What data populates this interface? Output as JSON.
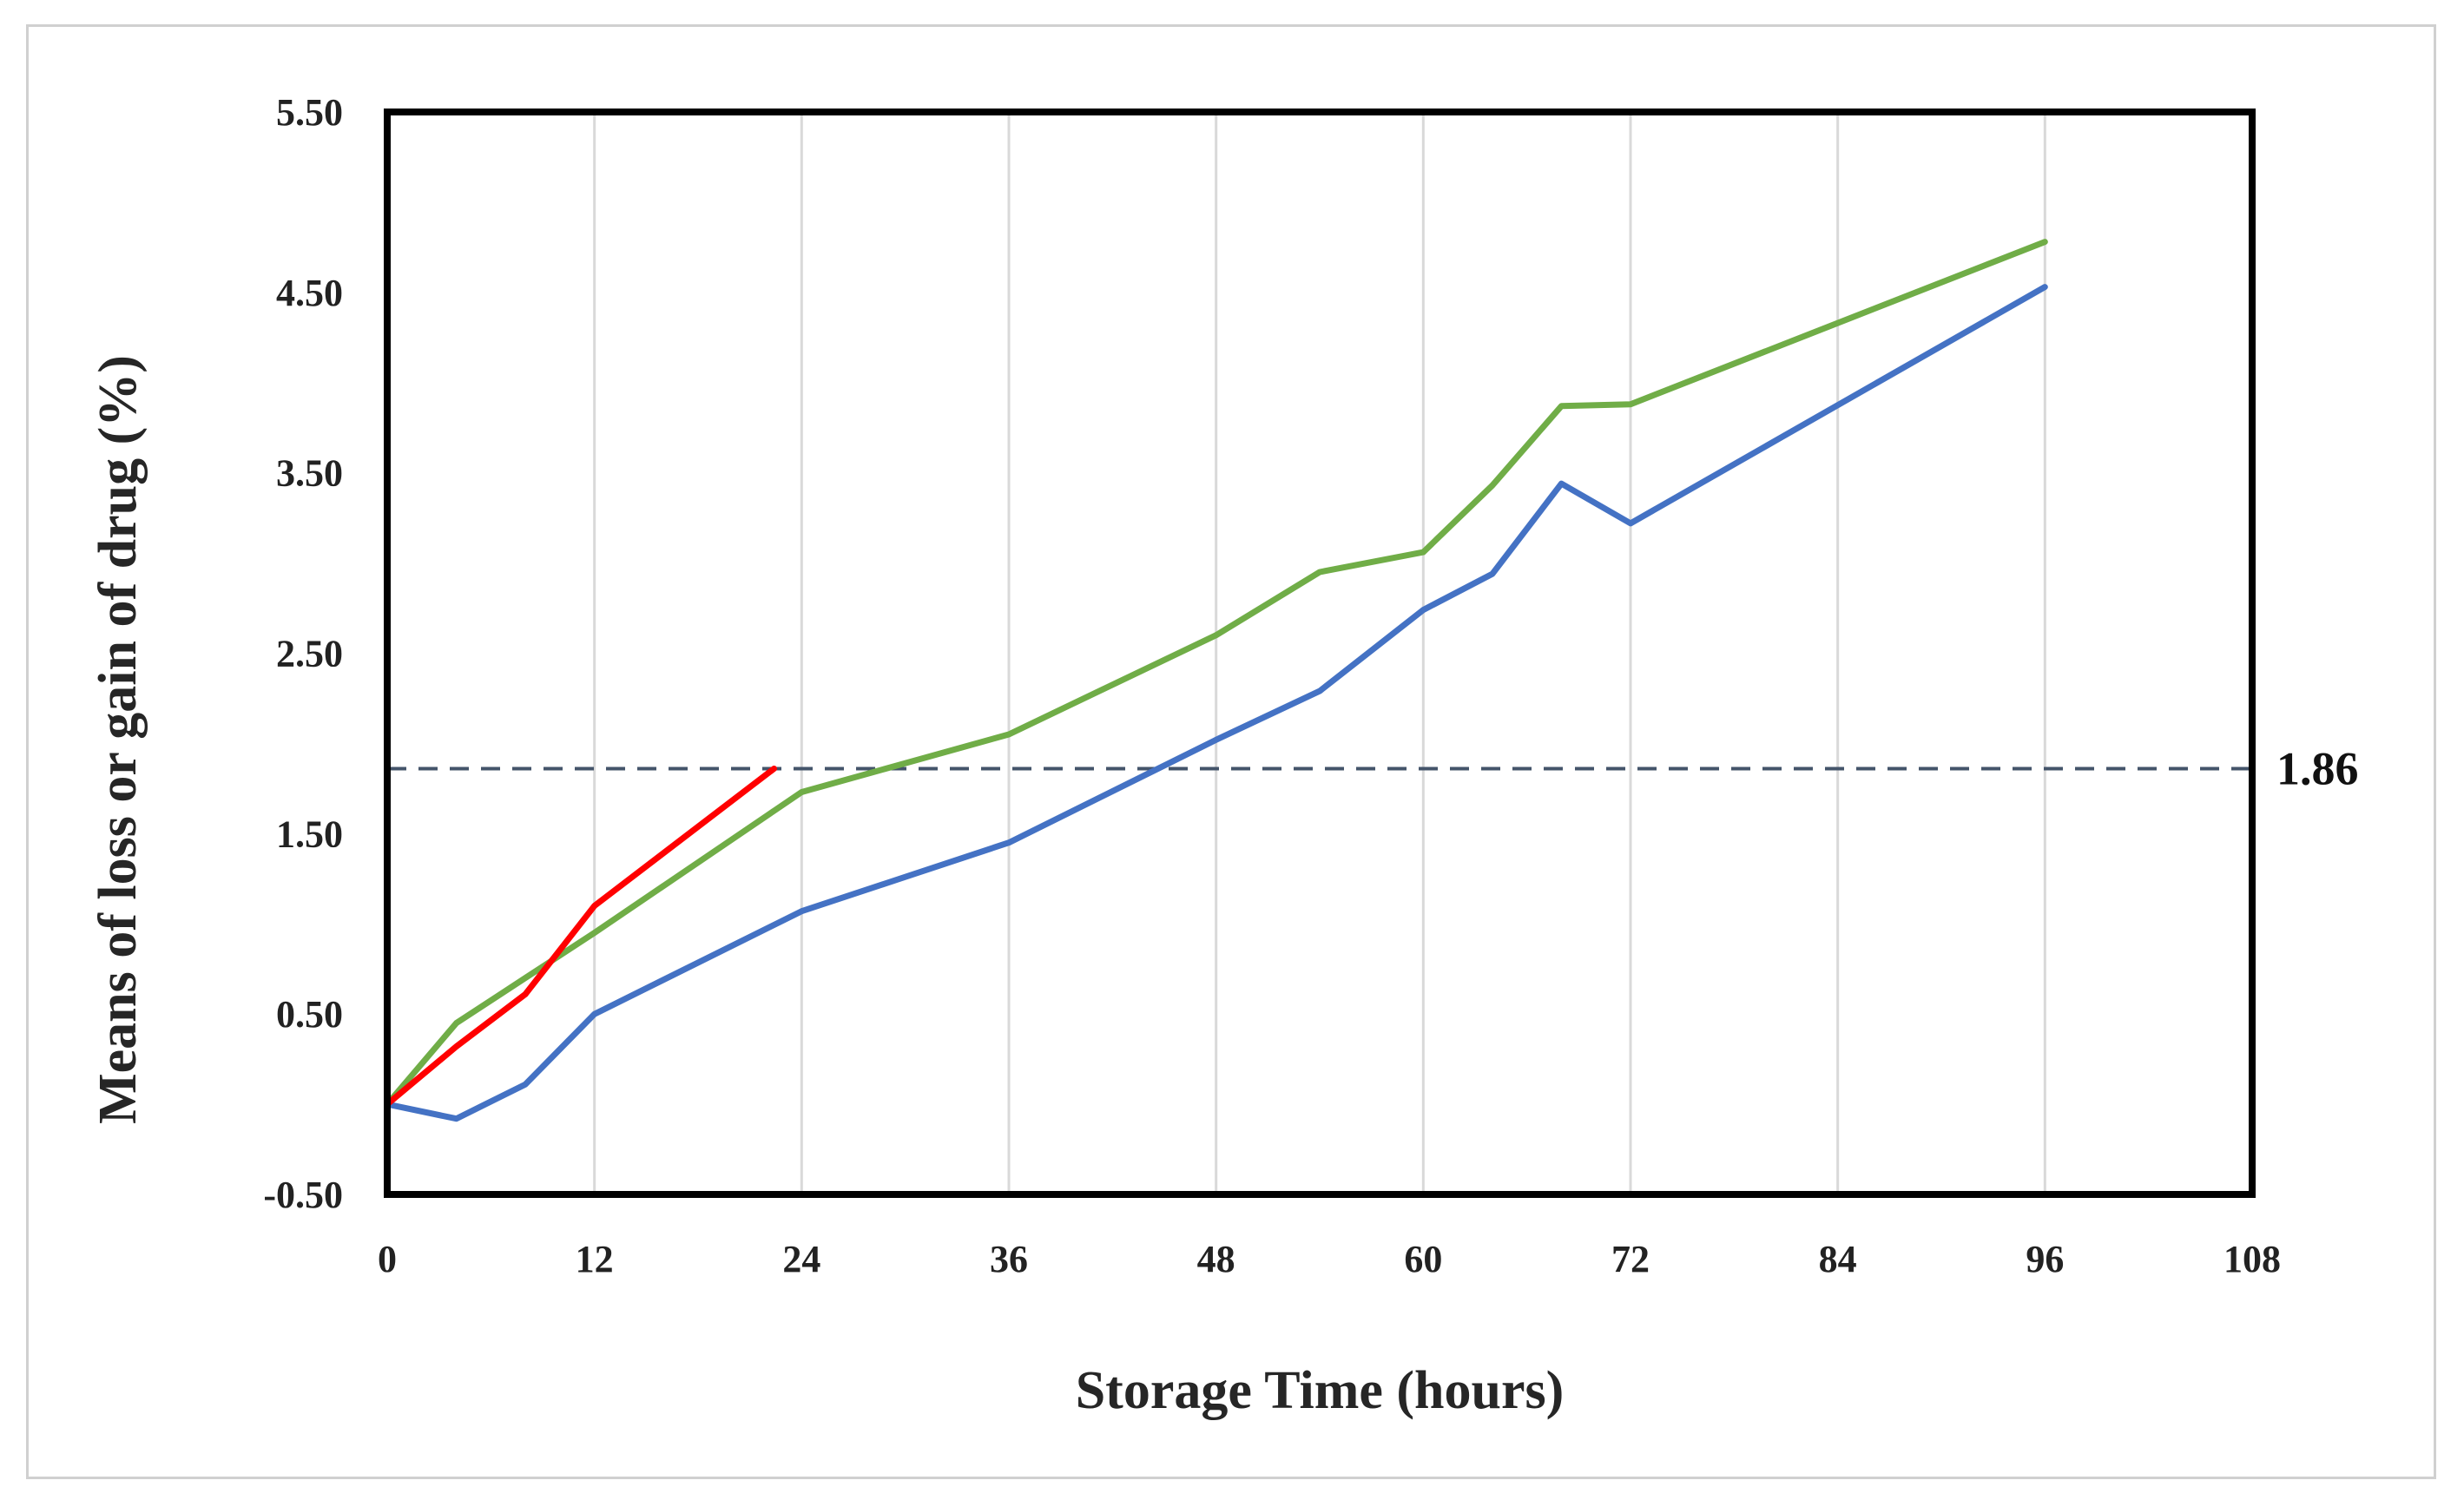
{
  "chart_data": {
    "type": "line",
    "title": "",
    "xlabel": "Storage Time (hours)",
    "ylabel": "Means of loss or gain of drug (%)",
    "xlim": [
      0,
      108
    ],
    "ylim": [
      -0.5,
      5.5
    ],
    "x_ticks": [
      0,
      12,
      24,
      36,
      48,
      60,
      72,
      84,
      96,
      108
    ],
    "y_ticks": [
      -0.5,
      0.5,
      1.5,
      2.5,
      3.5,
      4.5,
      5.5
    ],
    "x_tick_labels": [
      "0",
      "12",
      "24",
      "36",
      "48",
      "60",
      "72",
      "84",
      "96",
      "108"
    ],
    "y_tick_labels": [
      "-0.50",
      "0.50",
      "1.50",
      "2.50",
      "3.50",
      "4.50",
      "5.50"
    ],
    "grid": "vertical",
    "legend": "none",
    "series": [
      {
        "color": "#4472c4",
        "x": [
          0,
          4,
          8,
          12,
          24,
          36,
          48,
          54,
          60,
          64,
          68,
          72,
          96
        ],
        "y": [
          0.0,
          -0.08,
          0.11,
          0.5,
          1.07,
          1.45,
          2.02,
          2.29,
          2.74,
          2.94,
          3.44,
          3.22,
          4.53
        ]
      },
      {
        "color": "#70ad47",
        "x": [
          0,
          4,
          8,
          12,
          22,
          24,
          36,
          48,
          54,
          60,
          64,
          68,
          72,
          96
        ],
        "y": [
          0.0,
          0.45,
          0.7,
          0.95,
          1.6,
          1.73,
          2.05,
          2.6,
          2.95,
          3.06,
          3.43,
          3.87,
          3.88,
          4.78
        ]
      },
      {
        "color": "#ff0000",
        "x": [
          0,
          4,
          8,
          12,
          22.4
        ],
        "y": [
          0.0,
          0.32,
          0.61,
          1.1,
          1.86
        ]
      }
    ],
    "reference_line": {
      "y": 1.86,
      "label": "1.86",
      "color": "#44546a",
      "style": "dashed"
    }
  }
}
